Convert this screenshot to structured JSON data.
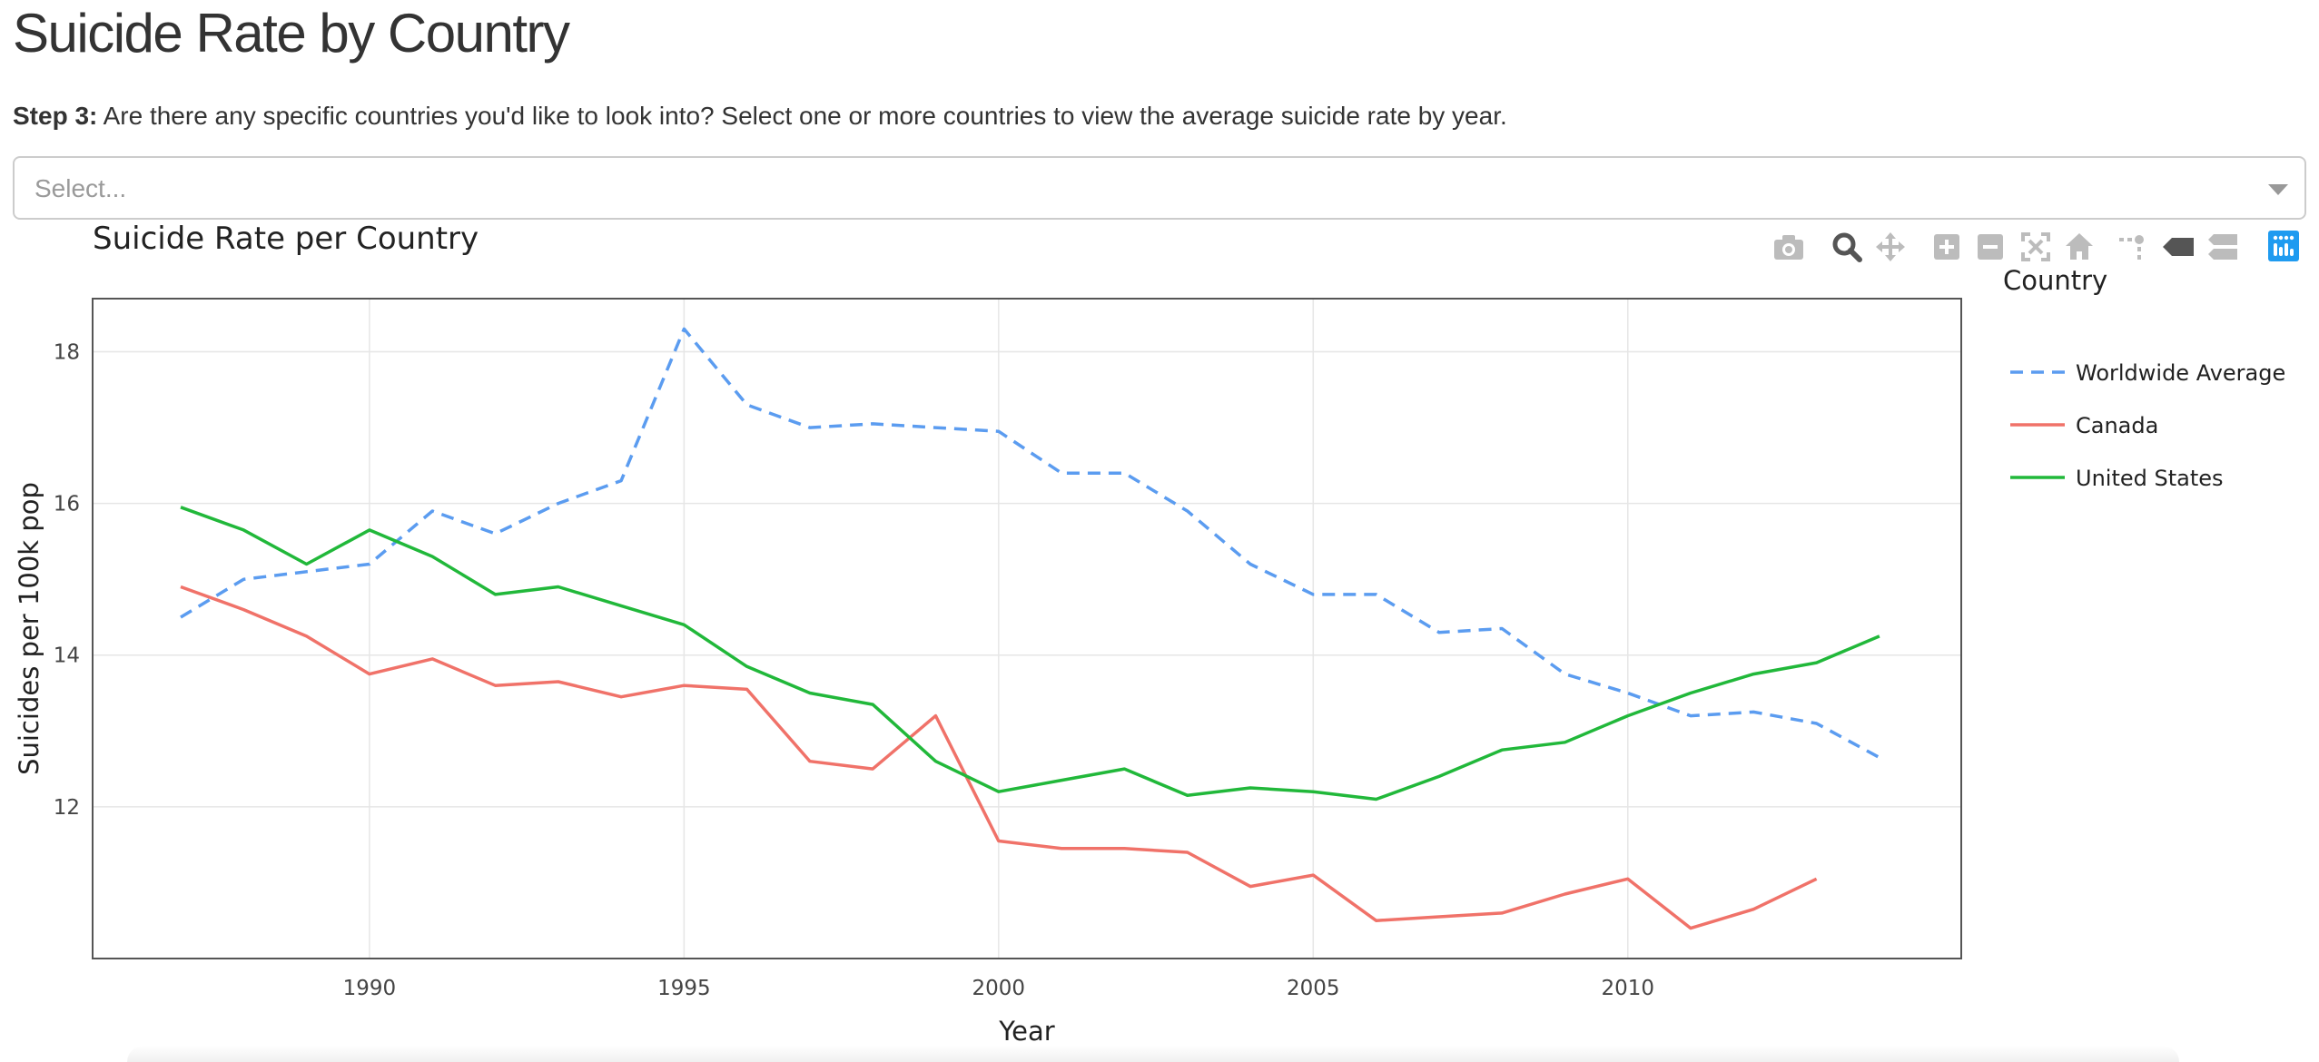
{
  "page": {
    "title": "Suicide Rate by Country",
    "step_label": "Step 3:",
    "step_text": " Are there any specific countries you'd like to look into? Select one or more countries to view the average suicide rate by year.",
    "select_placeholder": "Select..."
  },
  "toolbar": {
    "icons": [
      "camera-icon",
      "zoom-icon",
      "pan-icon",
      "zoom-in-icon",
      "zoom-out-icon",
      "autoscale-icon",
      "reset-axes-icon",
      "spike-lines-icon",
      "hover-closest-icon",
      "hover-compare-icon",
      "plotly-logo-icon"
    ]
  },
  "chart_data": {
    "type": "line",
    "title": "Suicide Rate per Country",
    "xlabel": "Year",
    "ylabel": "Suicides per 100k pop",
    "xlim": [
      1985.6,
      2015.3
    ],
    "ylim": [
      10.0,
      18.7
    ],
    "xticks": [
      1990,
      1995,
      2000,
      2005,
      2010
    ],
    "yticks": [
      12,
      14,
      16,
      18
    ],
    "grid": true,
    "legend_title": "Country",
    "legend_position": "right",
    "series": [
      {
        "name": "Worldwide Average",
        "color": "#5b9cf0",
        "dash": "dashed",
        "x": [
          1987,
          1988,
          1989,
          1990,
          1991,
          1992,
          1993,
          1994,
          1995,
          1996,
          1997,
          1998,
          1999,
          2000,
          2001,
          2002,
          2003,
          2004,
          2005,
          2006,
          2007,
          2008,
          2009,
          2010,
          2011,
          2012,
          2013,
          2014
        ],
        "y": [
          14.5,
          15.0,
          15.1,
          15.2,
          15.9,
          15.6,
          16.0,
          16.3,
          18.3,
          17.3,
          17.0,
          17.05,
          17.0,
          16.95,
          16.4,
          16.4,
          15.9,
          15.2,
          14.8,
          14.8,
          14.3,
          14.35,
          13.75,
          13.5,
          13.2,
          13.25,
          13.1,
          12.65
        ]
      },
      {
        "name": "Canada",
        "color": "#f07269",
        "dash": "solid",
        "x": [
          1987,
          1988,
          1989,
          1990,
          1991,
          1992,
          1993,
          1994,
          1995,
          1996,
          1997,
          1998,
          1999,
          2000,
          2001,
          2002,
          2003,
          2004,
          2005,
          2006,
          2007,
          2008,
          2009,
          2010,
          2011,
          2012,
          2013
        ],
        "y": [
          14.9,
          14.6,
          14.25,
          13.75,
          13.95,
          13.6,
          13.65,
          13.45,
          13.6,
          13.55,
          12.6,
          12.5,
          13.2,
          11.55,
          11.45,
          11.45,
          11.4,
          10.95,
          11.1,
          10.5,
          10.55,
          10.6,
          10.85,
          11.05,
          10.4,
          10.65,
          11.05
        ]
      },
      {
        "name": "United States",
        "color": "#21b83a",
        "dash": "solid",
        "x": [
          1987,
          1988,
          1989,
          1990,
          1991,
          1992,
          1993,
          1994,
          1995,
          1996,
          1997,
          1998,
          1999,
          2000,
          2001,
          2002,
          2003,
          2004,
          2005,
          2006,
          2007,
          2008,
          2009,
          2010,
          2011,
          2012,
          2013,
          2014
        ],
        "y": [
          15.95,
          15.65,
          15.2,
          15.65,
          15.3,
          14.8,
          14.9,
          14.65,
          14.4,
          13.85,
          13.5,
          13.35,
          12.6,
          12.2,
          12.35,
          12.5,
          12.15,
          12.25,
          12.2,
          12.1,
          12.4,
          12.75,
          12.85,
          13.2,
          13.5,
          13.75,
          13.9,
          14.25
        ]
      }
    ]
  }
}
